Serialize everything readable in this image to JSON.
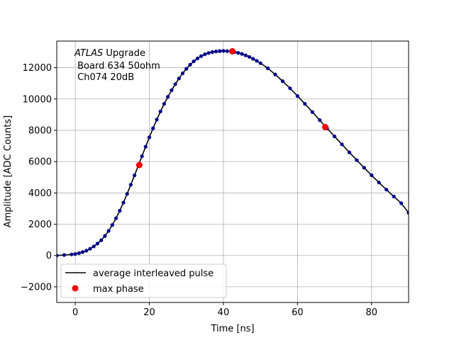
{
  "chart_data": {
    "type": "scatter",
    "xlabel": "Time [ns]",
    "ylabel": "Amplitude [ADC Counts]",
    "xlim": [
      -5,
      90
    ],
    "ylim": [
      -3000,
      13700
    ],
    "xticks": [
      0,
      20,
      40,
      60,
      80
    ],
    "yticks": [
      -2000,
      0,
      2000,
      4000,
      6000,
      8000,
      10000,
      12000
    ],
    "xtick_labels": [
      "0",
      "20",
      "40",
      "60",
      "80"
    ],
    "ytick_labels": [
      "−2000",
      "0",
      "2000",
      "4000",
      "6000",
      "8000",
      "10000",
      "12000"
    ],
    "grid": true,
    "legend_position": "lower-left",
    "annotation": {
      "line1_italic": "ATLAS",
      "line1_rest": " Upgrade",
      "line2": " Board 634 50ohm",
      "line3": " Ch074 20dB"
    },
    "colors": {
      "line": "#000000",
      "samples": "#00008b",
      "max_phase": "#ff0000",
      "grid": "#b0b0b0"
    },
    "series": [
      {
        "name": "average interleaved pulse",
        "kind": "line",
        "x": [
          -5,
          -3,
          -1,
          0,
          1,
          2,
          3,
          4,
          5,
          6,
          7,
          8,
          9,
          10,
          11,
          12,
          13,
          14,
          15,
          16,
          17,
          18,
          19,
          20,
          21,
          22,
          23,
          24,
          25,
          26,
          27,
          28,
          29,
          30,
          31,
          32,
          33,
          34,
          35,
          36,
          37,
          38,
          39,
          40,
          41,
          42,
          43,
          44,
          45,
          46,
          47,
          48,
          49,
          50,
          52,
          54,
          56,
          58,
          60,
          62,
          64,
          66,
          68,
          70,
          72,
          74,
          76,
          78,
          80,
          82,
          84,
          86,
          88,
          90
        ],
        "y": [
          0,
          30,
          70,
          100,
          150,
          220,
          310,
          430,
          580,
          760,
          980,
          1250,
          1570,
          1950,
          2380,
          2860,
          3380,
          3940,
          4520,
          5120,
          5730,
          6340,
          6950,
          7550,
          8130,
          8680,
          9200,
          9690,
          10140,
          10560,
          10950,
          11310,
          11640,
          11930,
          12190,
          12410,
          12590,
          12740,
          12860,
          12940,
          13000,
          13040,
          13060,
          13070,
          13060,
          13040,
          13000,
          12950,
          12880,
          12790,
          12690,
          12570,
          12440,
          12290,
          11960,
          11570,
          11140,
          10680,
          10190,
          9690,
          9170,
          8650,
          8130,
          7610,
          7100,
          6590,
          6090,
          5610,
          5130,
          4660,
          4210,
          3770,
          3340,
          2730
        ]
      },
      {
        "name": "max phase",
        "kind": "points",
        "x": [
          17.3,
          42.4,
          67.5
        ],
        "y": [
          5780,
          13050,
          8200
        ]
      }
    ]
  }
}
